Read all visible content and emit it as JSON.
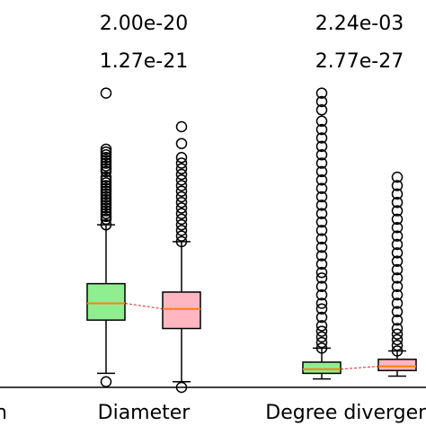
{
  "chart_data": {
    "type": "box",
    "categories": [
      "h",
      "Diameter",
      "Degree divergence"
    ],
    "annotations": [
      {
        "category": "Diameter",
        "lines": [
          "2.00e-20",
          "1.27e-21"
        ]
      },
      {
        "category": "Degree divergence",
        "lines": [
          "2.24e-03",
          "2.77e-27"
        ]
      }
    ],
    "series": [
      {
        "color": "#90ee90",
        "boxes": [
          {
            "category": "Diameter",
            "whisker_low": 0.05,
            "q1": 0.24,
            "median": 0.3,
            "q3": 0.37,
            "whisker_high": 0.58,
            "fliers": [
              0.02,
              0.58,
              0.6,
              0.61,
              0.62,
              0.63,
              0.64,
              0.65,
              0.66,
              0.67,
              0.68,
              0.69,
              0.7,
              0.71,
              0.72,
              0.73,
              0.74,
              0.75,
              0.77,
              0.78,
              0.79,
              0.8,
              0.81,
              0.82,
              0.83,
              0.84,
              0.85,
              1.05
            ]
          },
          {
            "category": "Degree divergence",
            "whisker_low": 0.03,
            "q1": 0.05,
            "median": 0.065,
            "q3": 0.09,
            "whisker_high": 0.14,
            "fliers": [
              0.14,
              0.16,
              0.18,
              0.2,
              0.22,
              0.25,
              0.28,
              0.3,
              0.33,
              0.36,
              0.39,
              0.41,
              0.44,
              0.47,
              0.5,
              0.53,
              0.56,
              0.59,
              0.62,
              0.65,
              0.68,
              0.71,
              0.74,
              0.77,
              0.8,
              0.83,
              0.86,
              0.89,
              0.92,
              0.95,
              0.99,
              1.02,
              1.05
            ]
          }
        ]
      },
      {
        "color": "#ffb6c1",
        "boxes": [
          {
            "category": "Diameter",
            "whisker_low": 0.02,
            "q1": 0.21,
            "median": 0.28,
            "q3": 0.34,
            "whisker_high": 0.52,
            "fliers": [
              0.0,
              0.52,
              0.54,
              0.56,
              0.58,
              0.6,
              0.62,
              0.64,
              0.66,
              0.68,
              0.7,
              0.72,
              0.74,
              0.76,
              0.78,
              0.8,
              0.82,
              0.87,
              0.93
            ]
          },
          {
            "category": "Degree divergence",
            "whisker_low": 0.04,
            "q1": 0.06,
            "median": 0.075,
            "q3": 0.1,
            "whisker_high": 0.13,
            "fliers": [
              0.13,
              0.15,
              0.17,
              0.19,
              0.21,
              0.24,
              0.27,
              0.3,
              0.33,
              0.36,
              0.39,
              0.42,
              0.45,
              0.48,
              0.51,
              0.54,
              0.57,
              0.6,
              0.63,
              0.66,
              0.69,
              0.72,
              0.75
            ]
          }
        ]
      }
    ],
    "median_color": "#ff7f0e",
    "connector_color": "#d62728",
    "ylim": [
      0,
      1.1
    ],
    "xlabel": "",
    "ylabel": ""
  }
}
